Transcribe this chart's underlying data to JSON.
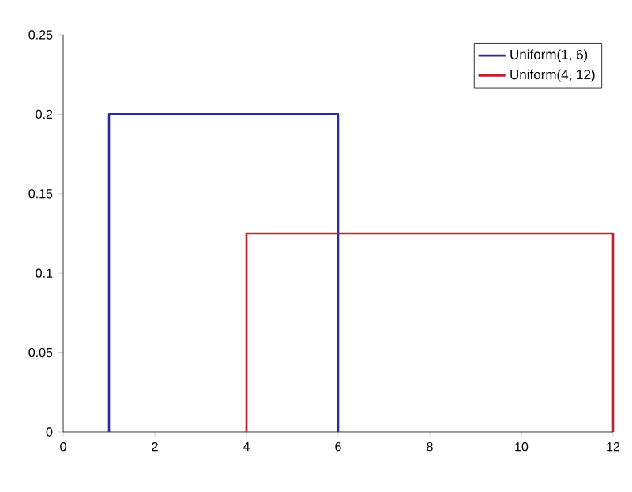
{
  "chart_data": {
    "type": "line",
    "xlim": [
      0,
      12
    ],
    "ylim": [
      0,
      0.25
    ],
    "xticks": [
      0,
      2,
      4,
      6,
      8,
      10,
      12
    ],
    "yticks": [
      0,
      0.05,
      0.1,
      0.15,
      0.2,
      0.25
    ],
    "grid": false,
    "legend": "top right",
    "marker": "none",
    "line_style": "solid",
    "series": [
      {
        "name": "Uniform(1, 6)",
        "color": "#2b2b9b",
        "x": [
          1,
          1,
          6,
          6
        ],
        "values": [
          0,
          0.2,
          0.2,
          0
        ]
      },
      {
        "name": "Uniform(4, 12)",
        "color": "#c3202b",
        "x": [
          4,
          4,
          12,
          12
        ],
        "values": [
          0,
          0.125,
          0.125,
          0
        ]
      }
    ]
  }
}
